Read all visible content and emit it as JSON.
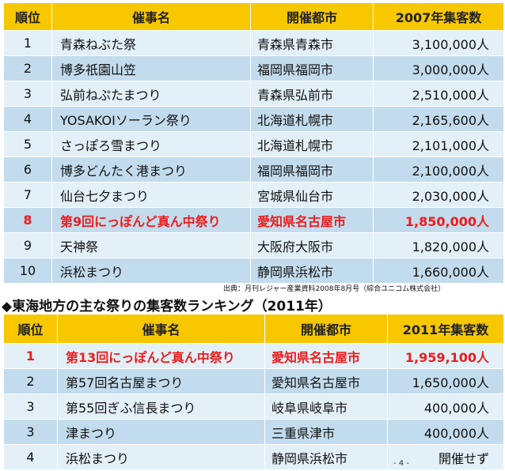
{
  "table1": {
    "headers": [
      "順位",
      "催事名",
      "開催都市",
      "2007年集客数"
    ],
    "rows": [
      {
        "rank": "1",
        "name": "青森ねぶた祭",
        "city": "青森県青森市",
        "visitors": "3,100,000人"
      },
      {
        "rank": "2",
        "name": "博多祇園山笠",
        "city": "福岡県福岡市",
        "visitors": "3,000,000人"
      },
      {
        "rank": "3",
        "name": "弘前ねぷたまつり",
        "city": "青森県弘前市",
        "visitors": "2,510,000人"
      },
      {
        "rank": "4",
        "name": "YOSAKOIソーラン祭り",
        "city": "北海道札幌市",
        "visitors": "2,165,600人"
      },
      {
        "rank": "5",
        "name": "さっぽろ雪まつり",
        "city": "北海道札幌市",
        "visitors": "2,101,000人"
      },
      {
        "rank": "6",
        "name": "博多どんたく港まつり",
        "city": "福岡県福岡市",
        "visitors": "2,100,000人"
      },
      {
        "rank": "7",
        "name": "仙台七夕まつり",
        "city": "宮城県仙台市",
        "visitors": "2,030,000人"
      },
      {
        "rank": "8",
        "name": "第9回にっぽんど真ん中祭り",
        "city": "愛知県名古屋市",
        "visitors": "1,850,000人"
      },
      {
        "rank": "9",
        "name": "天神祭",
        "city": "大阪府大阪市",
        "visitors": "1,820,000人"
      },
      {
        "rank": "10",
        "name": "浜松まつり",
        "city": "静岡県浜松市",
        "visitors": "1,660,000人"
      }
    ],
    "source": "出典：月刊レジャー産業資料2008年8月号（綜合ユニコム株式会社）"
  },
  "section2_title": "◆東海地方の主な祭りの集客数ランキング（2011年）",
  "table2": {
    "headers": [
      "順位",
      "催事名",
      "開催都市",
      "2011年集客数"
    ],
    "rows": [
      {
        "rank": "1",
        "name": "第13回にっぽんど真ん中祭り",
        "city": "愛知県名古屋市",
        "visitors": "1,959,100人"
      },
      {
        "rank": "2",
        "name": "第57回名古屋まつり",
        "city": "愛知県名古屋市",
        "visitors": "1,650,000人"
      },
      {
        "rank": "3",
        "name": "第55回ぎふ信長まつり",
        "city": "岐阜県岐阜市",
        "visitors": "400,000人"
      },
      {
        "rank": "3",
        "name": "津まつり",
        "city": "三重県津市",
        "visitors": "400,000人"
      },
      {
        "rank": "4",
        "name": "浜松まつり",
        "city": "静岡県浜松市",
        "visitors": "開催せず"
      }
    ]
  },
  "page_number": "- 4 -",
  "colors": {
    "header": "#f7c700",
    "row_light": "#e3f0f8",
    "row_dark": "#c3dced",
    "highlight": "#ee1c1c"
  }
}
